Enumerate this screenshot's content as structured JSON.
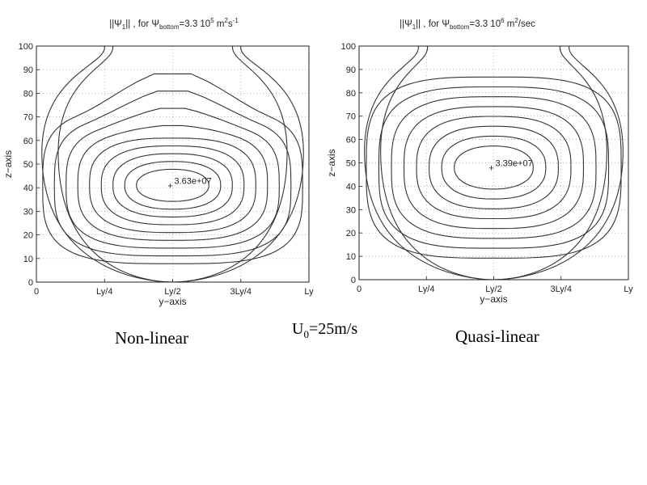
{
  "chart_data": [
    {
      "type": "contour",
      "title": "||Ψ₁|| , for Ψbottom=3.3 10⁵ m²s⁻¹",
      "title_parts": {
        "pre": "||Ψ",
        "sub1": "1",
        "mid": "|| , for Ψ",
        "sub2": "bottom",
        "eq": "=3.3 10",
        "sup": "5",
        "tail": " m",
        "sup2": "2",
        "tail2": "s",
        "sup3": "-1"
      },
      "xlabel": "y−axis",
      "ylabel": "z−axis",
      "x_ticks": [
        "0",
        "Ly/4",
        "Ly/2",
        "3Ly/4",
        "Ly"
      ],
      "y_ticks": [
        "0",
        "10",
        "20",
        "30",
        "40",
        "50",
        "60",
        "70",
        "80",
        "90",
        "100"
      ],
      "ylim": [
        0,
        100
      ],
      "grid": true,
      "max_label": "3.63e+07",
      "max_location": {
        "y_frac": 0.5,
        "z": 41
      },
      "caption": "Non-linear"
    },
    {
      "type": "contour",
      "title": "||Ψ₁|| , for Ψbottom=3.3 10⁶ m²/sec",
      "title_parts": {
        "pre": "||Ψ",
        "sub1": "1",
        "mid": "|| , for Ψ",
        "sub2": "bottom",
        "eq": "=3.3 10",
        "sup": "6",
        "tail": " m",
        "sup2": "2",
        "tail2": "/sec",
        "sup3": ""
      },
      "xlabel": "y−axis",
      "ylabel": "z−axis",
      "x_ticks": [
        "0",
        "Ly/4",
        "Ly/2",
        "3Ly/4",
        "Ly"
      ],
      "y_ticks": [
        "0",
        "10",
        "20",
        "30",
        "40",
        "50",
        "60",
        "70",
        "80",
        "90",
        "100"
      ],
      "ylim": [
        0,
        100
      ],
      "grid": true,
      "max_label": "3.39e+07",
      "max_location": {
        "y_frac": 0.5,
        "z": 48
      },
      "caption": "Quasi-linear"
    }
  ],
  "center_label": {
    "base": "U",
    "sub": "0",
    "rest": "=25m/s"
  }
}
